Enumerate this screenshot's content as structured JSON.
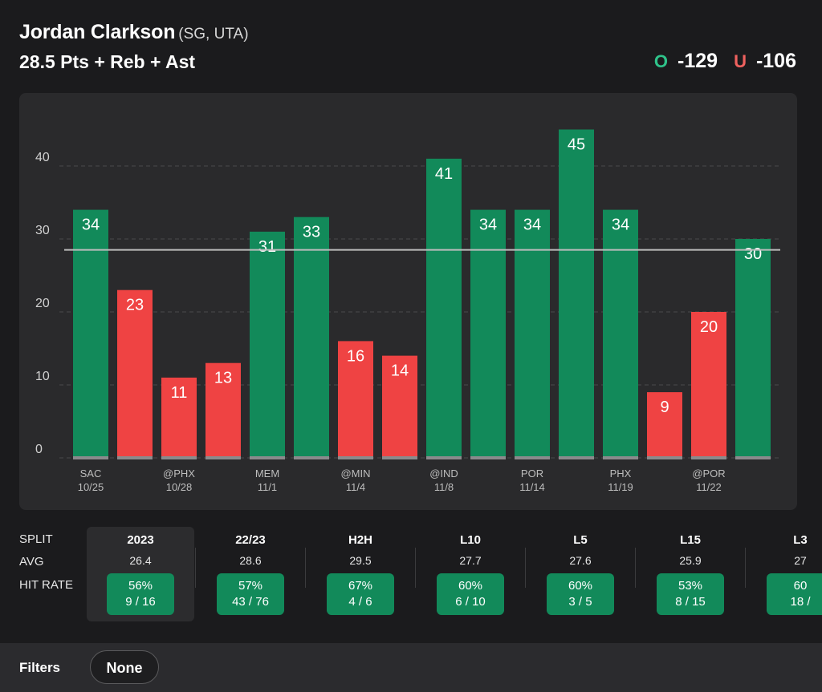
{
  "header": {
    "player_name": "Jordan Clarkson",
    "player_pos": "(SG, UTA)",
    "prop_label": "28.5 Pts + Reb + Ast",
    "over_letter": "O",
    "over_odds": "-129",
    "under_letter": "U",
    "under_odds": "-106"
  },
  "colors": {
    "over": "#128a5a",
    "under": "#ef4343",
    "background": "#1b1b1d",
    "panel": "#2a2a2c"
  },
  "chart_data": {
    "type": "bar",
    "line": 28.5,
    "ylim": [
      0,
      48
    ],
    "yticks": [
      0,
      10,
      20,
      30,
      40
    ],
    "grid": true,
    "values": [
      34,
      23,
      11,
      13,
      31,
      33,
      16,
      14,
      41,
      34,
      34,
      45,
      34,
      9,
      20,
      30
    ],
    "results": [
      "over",
      "under",
      "under",
      "under",
      "over",
      "over",
      "under",
      "under",
      "over",
      "over",
      "over",
      "over",
      "over",
      "under",
      "under",
      "over"
    ],
    "x_labels": [
      {
        "index": 0,
        "team": "SAC",
        "date": "10/25"
      },
      {
        "index": 2,
        "team": "@PHX",
        "date": "10/28"
      },
      {
        "index": 4,
        "team": "MEM",
        "date": "11/1"
      },
      {
        "index": 6,
        "team": "@MIN",
        "date": "11/4"
      },
      {
        "index": 8,
        "team": "@IND",
        "date": "11/8"
      },
      {
        "index": 10,
        "team": "POR",
        "date": "11/14"
      },
      {
        "index": 12,
        "team": "PHX",
        "date": "11/19"
      },
      {
        "index": 14,
        "team": "@POR",
        "date": "11/22"
      }
    ]
  },
  "splits": {
    "row_labels": {
      "split": "SPLIT",
      "avg": "AVG",
      "hit_rate": "HIT RATE"
    },
    "columns": [
      {
        "name": "2023",
        "avg": "26.4",
        "pct": "56%",
        "ratio": "9 / 16",
        "active": true
      },
      {
        "name": "22/23",
        "avg": "28.6",
        "pct": "57%",
        "ratio": "43 / 76"
      },
      {
        "name": "H2H",
        "avg": "29.5",
        "pct": "67%",
        "ratio": "4 / 6"
      },
      {
        "name": "L10",
        "avg": "27.7",
        "pct": "60%",
        "ratio": "6 / 10"
      },
      {
        "name": "L5",
        "avg": "27.6",
        "pct": "60%",
        "ratio": "3 / 5"
      },
      {
        "name": "L15",
        "avg": "25.9",
        "pct": "53%",
        "ratio": "8 / 15"
      },
      {
        "name": "L3",
        "avg": "27",
        "pct": "60",
        "ratio": "18 /"
      }
    ]
  },
  "filters": {
    "label": "Filters",
    "value": "None"
  }
}
